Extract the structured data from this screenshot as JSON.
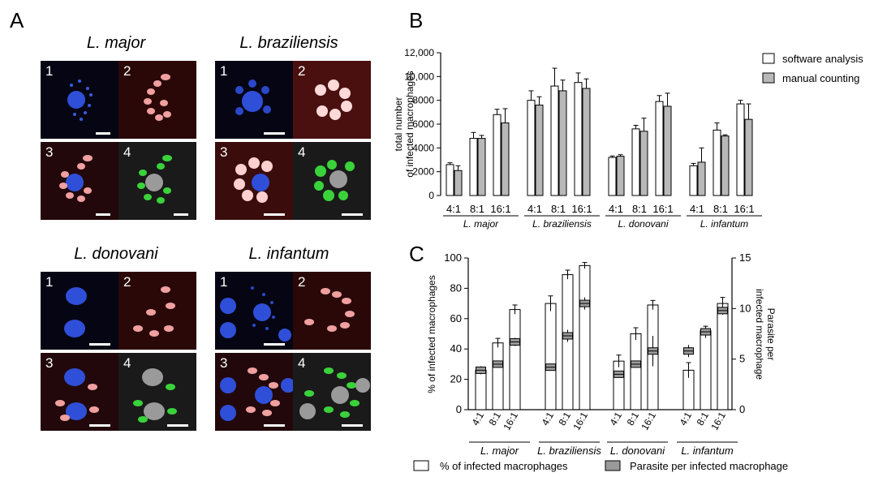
{
  "panel_labels": {
    "a": "A",
    "b": "B",
    "c": "C"
  },
  "panel_a": {
    "species": [
      "L. major",
      "L. braziliensis",
      "L. donovani",
      "L. infantum"
    ],
    "tile_numbers": [
      "1",
      "2",
      "3",
      "4"
    ]
  },
  "chart_data": [
    {
      "type": "bar",
      "panel": "B",
      "ylabel": "total number of infected macrophages",
      "ylim": [
        0,
        12000
      ],
      "yticks": [
        "0",
        "2000",
        "4000",
        "6000",
        "8000",
        "10,000",
        "12,000"
      ],
      "groups": [
        "L. major",
        "L. braziliensis",
        "L. donovani",
        "L. infantum"
      ],
      "categories": [
        "4:1",
        "8:1",
        "16:1"
      ],
      "legend_position": "top-right",
      "series": [
        {
          "name": "software analysis",
          "color": "#ffffff",
          "values": [
            [
              2600,
              4800,
              6800
            ],
            [
              8000,
              9200,
              9500
            ],
            [
              3200,
              5600,
              7900
            ],
            [
              2500,
              5500,
              7700
            ]
          ],
          "errors": [
            [
              150,
              500,
              450
            ],
            [
              800,
              1500,
              800
            ],
            [
              120,
              300,
              500
            ],
            [
              200,
              600,
              300
            ]
          ]
        },
        {
          "name": "manual counting",
          "color": "#b8b8b8",
          "values": [
            [
              2100,
              4800,
              6100
            ],
            [
              7600,
              8800,
              9000
            ],
            [
              3300,
              5400,
              7500
            ],
            [
              2800,
              5000,
              6400
            ]
          ],
          "errors": [
            [
              400,
              250,
              1200
            ],
            [
              700,
              900,
              800
            ],
            [
              130,
              1100,
              1100
            ],
            [
              1200,
              100,
              1300
            ]
          ]
        }
      ]
    },
    {
      "type": "bar",
      "panel": "C",
      "ylabel": "% of infected macrophages",
      "y2label": "Parasite per infected macrophage",
      "ylim": [
        0,
        100
      ],
      "y2lim": [
        0,
        15
      ],
      "yticks": [
        "0",
        "20",
        "40",
        "60",
        "80",
        "100"
      ],
      "y2ticks": [
        "0",
        "5",
        "10",
        "15"
      ],
      "groups": [
        "L. major",
        "L. braziliensis",
        "L. donovani",
        "L. infantum"
      ],
      "categories": [
        "4:1",
        "8:1",
        "16:1"
      ],
      "legend_position": "bottom",
      "series": [
        {
          "name": "% of infected macrophages",
          "color": "#ffffff",
          "axis": "left",
          "values": [
            [
              26,
              44,
              66
            ],
            [
              70,
              89,
              95
            ],
            [
              32,
              50,
              69
            ],
            [
              26,
              52,
              70
            ]
          ],
          "errors": [
            [
              2,
              3,
              3
            ],
            [
              5,
              3,
              2
            ],
            [
              4,
              4,
              3
            ],
            [
              5,
              3,
              4
            ]
          ]
        },
        {
          "name": "Parasite per infected macrophage",
          "color": "#9a9a9a",
          "axis": "right",
          "values": [
            [
              3.9,
              4.5,
              6.7
            ],
            [
              4.2,
              7.3,
              10.5
            ],
            [
              3.5,
              4.5,
              5.8
            ],
            [
              5.8,
              7.7,
              9.8
            ]
          ],
          "errors": [
            [
              0.4,
              0.3,
              0.4
            ],
            [
              0.3,
              0.6,
              0.6
            ],
            [
              0.3,
              0.3,
              1.5
            ],
            [
              0.6,
              0.6,
              0.4
            ]
          ]
        }
      ]
    }
  ]
}
